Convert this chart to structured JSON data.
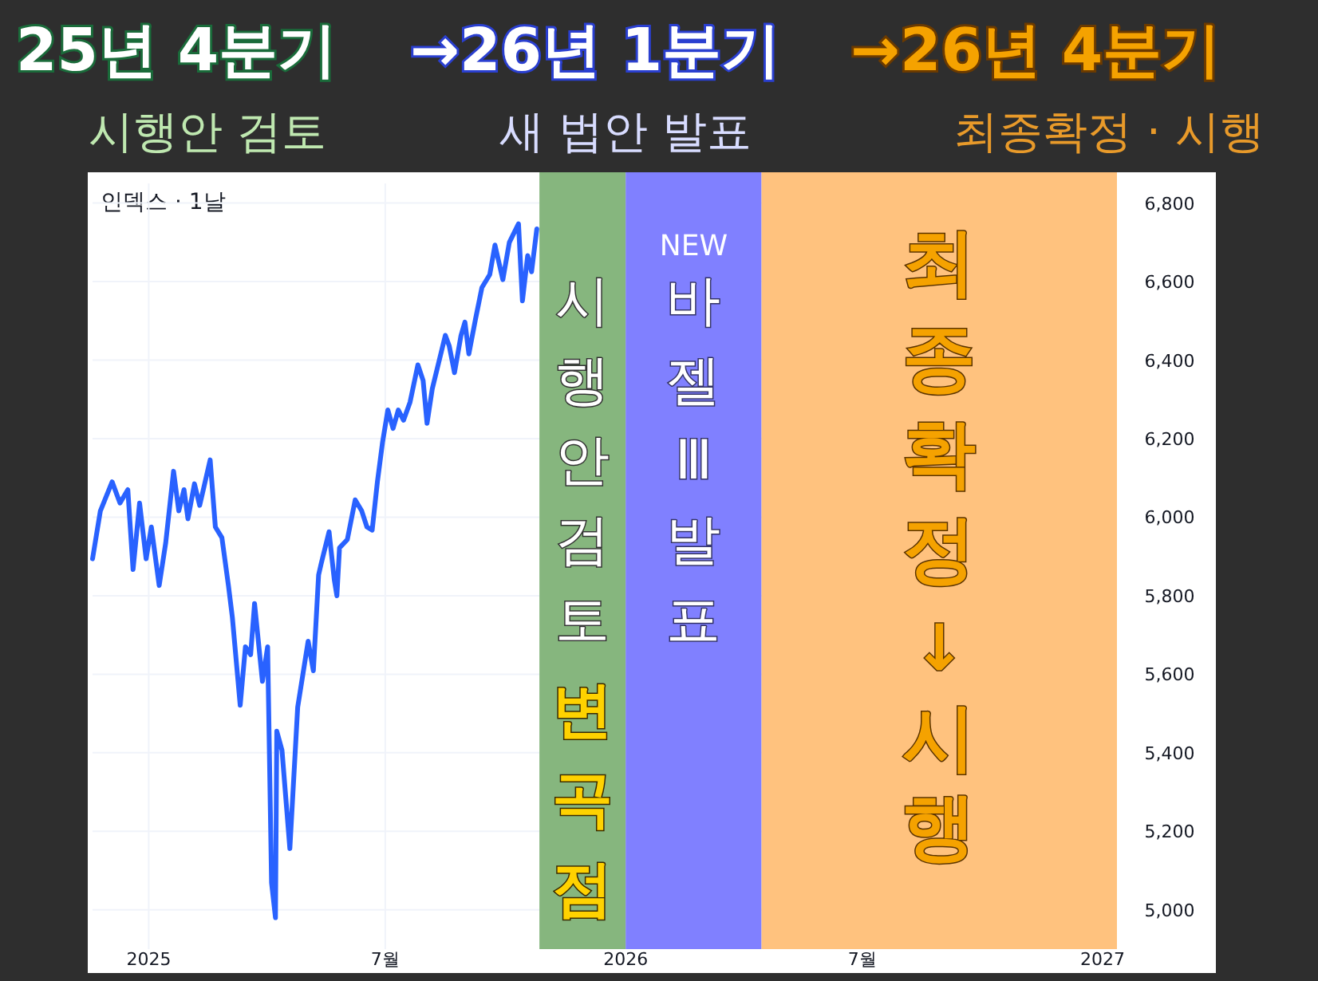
{
  "chart_data": {
    "type": "line",
    "title": "인덱스 · 1날",
    "x": [
      "2024-11-19",
      "2024-11-25",
      "2024-12-04",
      "2024-12-10",
      "2024-12-16",
      "2024-12-20",
      "2024-12-25",
      "2024-12-30",
      "2025-01-03",
      "2025-01-09",
      "2025-01-14",
      "2025-01-20",
      "2025-01-24",
      "2025-01-28",
      "2025-01-31",
      "2025-02-05",
      "2025-02-09",
      "2025-02-17",
      "2025-02-21",
      "2025-02-26",
      "2025-03-03",
      "2025-03-06",
      "2025-03-12",
      "2025-03-16",
      "2025-03-20",
      "2025-03-23",
      "2025-03-29",
      "2025-04-02",
      "2025-04-05",
      "2025-04-08",
      "2025-04-09",
      "2025-04-13",
      "2025-04-19",
      "2025-04-25",
      "2025-05-03",
      "2025-05-07",
      "2025-05-11",
      "2025-05-13",
      "2025-05-19",
      "2025-05-23",
      "2025-05-25",
      "2025-05-27",
      "2025-06-02",
      "2025-06-08",
      "2025-06-13",
      "2025-06-17",
      "2025-06-21",
      "2025-06-25",
      "2025-06-29",
      "2025-07-03",
      "2025-07-07",
      "2025-07-11",
      "2025-07-15",
      "2025-07-20",
      "2025-07-26",
      "2025-07-30",
      "2025-08-02",
      "2025-08-06",
      "2025-08-11",
      "2025-08-16",
      "2025-08-19",
      "2025-08-23",
      "2025-08-28",
      "2025-08-31",
      "2025-09-03",
      "2025-09-08",
      "2025-09-13",
      "2025-09-19",
      "2025-09-23",
      "2025-09-29",
      "2025-10-04",
      "2025-10-11",
      "2025-10-14",
      "2025-10-18",
      "2025-10-21",
      "2025-10-25"
    ],
    "series": [
      {
        "color": "#2962ff",
        "values": [
          5894,
          6016,
          6090,
          6036,
          6070,
          5867,
          6036,
          5894,
          5975,
          5826,
          5935,
          6117,
          6016,
          6070,
          5996,
          6085,
          6030,
          6146,
          5975,
          5948,
          5826,
          5745,
          5521,
          5670,
          5650,
          5780,
          5582,
          5670,
          5069,
          4980,
          5455,
          5406,
          5156,
          5516,
          5684,
          5609,
          5853,
          5882,
          5963,
          5841,
          5800,
          5922,
          5943,
          6044,
          6016,
          5975,
          5967,
          6090,
          6192,
          6273,
          6226,
          6273,
          6247,
          6293,
          6388,
          6348,
          6239,
          6327,
          6395,
          6463,
          6436,
          6368,
          6463,
          6497,
          6416,
          6503,
          6585,
          6618,
          6693,
          6605,
          6700,
          6747,
          6551,
          6666,
          6625,
          6734
        ]
      }
    ],
    "xlim": [
      "2024-11-19",
      "2027-01-12"
    ],
    "xticks": [
      {
        "value": "2025-01-01",
        "label": "2025"
      },
      {
        "value": "2025-07-01",
        "label": "7월"
      },
      {
        "value": "2026-01-01",
        "label": "2026"
      },
      {
        "value": "2026-07-01",
        "label": "7월"
      },
      {
        "value": "2027-01-01",
        "label": "2027"
      }
    ],
    "ylim": [
      4900,
      6850
    ],
    "yticks": [
      {
        "value": 5000,
        "label": "5,000"
      },
      {
        "value": 5200,
        "label": "5,200"
      },
      {
        "value": 5400,
        "label": "5,400"
      },
      {
        "value": 5600,
        "label": "5,600"
      },
      {
        "value": 5800,
        "label": "5,800"
      },
      {
        "value": 6000,
        "label": "6,000"
      },
      {
        "value": 6200,
        "label": "6,200"
      },
      {
        "value": 6400,
        "label": "6,400"
      },
      {
        "value": 6600,
        "label": "6,600"
      },
      {
        "value": 6800,
        "label": "6,800"
      }
    ],
    "grid": true,
    "marker": "none",
    "line_style": "solid",
    "bands": [
      {
        "axis": "x",
        "from": "2025-10-27",
        "to": "2026-01-01",
        "label": "시행안검토",
        "color": "#86b67e"
      },
      {
        "axis": "x",
        "from": "2026-01-01",
        "to": "2026-04-15",
        "label": "바젤Ⅲ발표",
        "color": "#8080ff"
      },
      {
        "axis": "x",
        "from": "2026-04-15",
        "to": "2027-01-12",
        "label": "최종확정",
        "color": "#ffc27e"
      }
    ],
    "annotations": [
      "25년 4분기",
      "→26년 1분기",
      "→26년 4분기",
      "시행안 검토",
      "새 법안 발표",
      "최종확정 · 시행",
      "변곡점",
      "NEW",
      "↓",
      "시행"
    ]
  }
}
